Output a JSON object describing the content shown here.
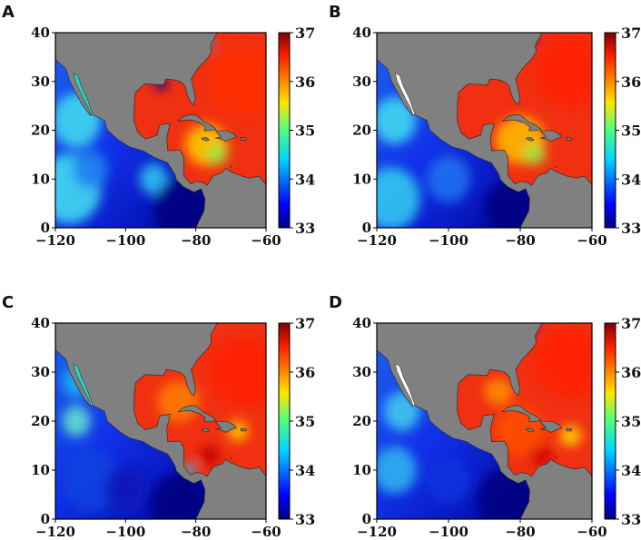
{
  "chart_data": [
    {
      "type": "heatmap",
      "panel_label": "A",
      "xlim": [
        -120,
        -60
      ],
      "ylim": [
        0,
        40
      ],
      "xticks": [
        "−120",
        "−100",
        "−80",
        "−60"
      ],
      "yticks": [
        "0",
        "10",
        "20",
        "30",
        "40"
      ],
      "clim": [
        33,
        37
      ],
      "colorbar_ticks": [
        "33",
        "34",
        "35",
        "36",
        "37"
      ],
      "colormap": "jet",
      "land_color": "#808080"
    },
    {
      "type": "heatmap",
      "panel_label": "B",
      "xlim": [
        -120,
        -60
      ],
      "ylim": [
        0,
        40
      ],
      "xticks": [
        "−120",
        "−100",
        "−80",
        "−60"
      ],
      "yticks": [
        "0",
        "10",
        "20",
        "30",
        "40"
      ],
      "clim": [
        33,
        37
      ],
      "colorbar_ticks": [
        "33",
        "34",
        "35",
        "36",
        "37"
      ],
      "colormap": "jet",
      "land_color": "#808080"
    },
    {
      "type": "heatmap",
      "panel_label": "C",
      "xlim": [
        -120,
        -60
      ],
      "ylim": [
        0,
        40
      ],
      "xticks": [
        "−120",
        "−100",
        "−80",
        "−60"
      ],
      "yticks": [
        "0",
        "10",
        "20",
        "30",
        "40"
      ],
      "clim": [
        33,
        37
      ],
      "colorbar_ticks": [
        "33",
        "34",
        "35",
        "36",
        "37"
      ],
      "colormap": "jet",
      "land_color": "#808080"
    },
    {
      "type": "heatmap",
      "panel_label": "D",
      "xlim": [
        -120,
        -60
      ],
      "ylim": [
        0,
        40
      ],
      "xticks": [
        "−120",
        "−100",
        "−80",
        "−60"
      ],
      "yticks": [
        "0",
        "10",
        "20",
        "30",
        "40"
      ],
      "clim": [
        33,
        37
      ],
      "colorbar_ticks": [
        "33",
        "34",
        "35",
        "36",
        "37"
      ],
      "colormap": "jet",
      "land_color": "#808080"
    }
  ]
}
